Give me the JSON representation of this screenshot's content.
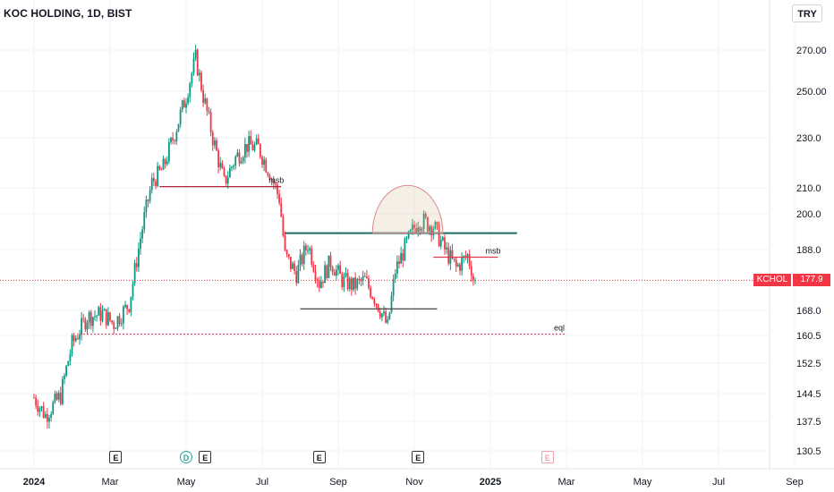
{
  "header": {
    "title": "KOC HOLDING, 1D, BIST",
    "currency": "TRY"
  },
  "last": {
    "symbol": "KCHOL",
    "price": "177.9",
    "value": 177.9
  },
  "events": [
    {
      "label": "E",
      "month_pos": 2.15
    },
    {
      "label": "D",
      "month_pos": 4.0
    },
    {
      "label": "E",
      "month_pos": 4.5
    },
    {
      "label": "E",
      "month_pos": 7.5
    },
    {
      "label": "E",
      "month_pos": 10.1
    },
    {
      "label": "E",
      "month_pos": 13.5
    }
  ],
  "chart_data": {
    "type": "candlestick",
    "symbol": "KCHOL",
    "interval": "1D",
    "exchange": "BIST",
    "y_ticks": [
      "270.00",
      "250.00",
      "230.0",
      "210.0",
      "200.0",
      "188.0",
      "168.0",
      "160.5",
      "152.5",
      "144.5",
      "137.5",
      "130.5"
    ],
    "y_tick_values": [
      270,
      250,
      230,
      210,
      200,
      188,
      168,
      160.5,
      152.5,
      144.5,
      137.5,
      130.5
    ],
    "x_ticks": [
      "2024",
      "Mar",
      "May",
      "Jul",
      "Sep",
      "Nov",
      "2025",
      "Mar",
      "May",
      "Jul",
      "Sep"
    ],
    "x_tick_months": [
      0,
      2,
      4,
      6,
      8,
      10,
      12,
      14,
      16,
      18,
      20
    ],
    "x_range_months": [
      0,
      20.9
    ],
    "price_path": [
      [
        -0.1,
        145
      ],
      [
        0.3,
        139
      ],
      [
        0.7,
        144
      ],
      [
        1.0,
        158
      ],
      [
        1.4,
        166
      ],
      [
        1.8,
        167
      ],
      [
        2.1,
        164
      ],
      [
        2.5,
        170
      ],
      [
        2.8,
        192
      ],
      [
        3.1,
        212
      ],
      [
        3.4,
        218
      ],
      [
        3.7,
        232
      ],
      [
        4.0,
        248
      ],
      [
        4.25,
        266
      ],
      [
        4.45,
        248
      ],
      [
        4.7,
        230
      ],
      [
        5.0,
        212
      ],
      [
        5.3,
        222
      ],
      [
        5.6,
        227
      ],
      [
        5.9,
        226
      ],
      [
        6.2,
        216
      ],
      [
        6.45,
        206
      ],
      [
        6.6,
        186
      ],
      [
        6.9,
        180
      ],
      [
        7.2,
        190
      ],
      [
        7.5,
        177
      ],
      [
        7.8,
        184
      ],
      [
        8.1,
        178
      ],
      [
        8.4,
        176
      ],
      [
        8.7,
        178
      ],
      [
        9.0,
        171
      ],
      [
        9.3,
        163
      ],
      [
        9.5,
        181
      ],
      [
        9.8,
        190
      ],
      [
        10.1,
        198
      ],
      [
        10.5,
        196
      ],
      [
        10.8,
        188
      ],
      [
        11.1,
        182
      ],
      [
        11.4,
        186
      ],
      [
        11.6,
        177.9
      ]
    ],
    "levels": [
      {
        "label": "msb",
        "price": 210.5,
        "from": 3.3,
        "to": 6.5,
        "color": "#b2273b"
      },
      {
        "label": "",
        "price": 193.5,
        "from": 6.6,
        "to": 12.7,
        "color": "#1b6b5e"
      },
      {
        "label": "msb",
        "price": 185.5,
        "from": 10.5,
        "to": 12.2,
        "color": "#e33b48"
      },
      {
        "label": "",
        "price": 168.5,
        "from": 7.0,
        "to": 10.6,
        "color": "#555555"
      },
      {
        "label": "eql",
        "price": 160.9,
        "from": 1.2,
        "to": 14.0,
        "color": "#e34d5a"
      }
    ],
    "arc": {
      "from_month": 8.9,
      "to_month": 10.75,
      "base_price": 193.5,
      "top_price": 211
    },
    "colors": {
      "up": "#089981",
      "down": "#f23645",
      "grid": "#f0f3fa"
    }
  }
}
